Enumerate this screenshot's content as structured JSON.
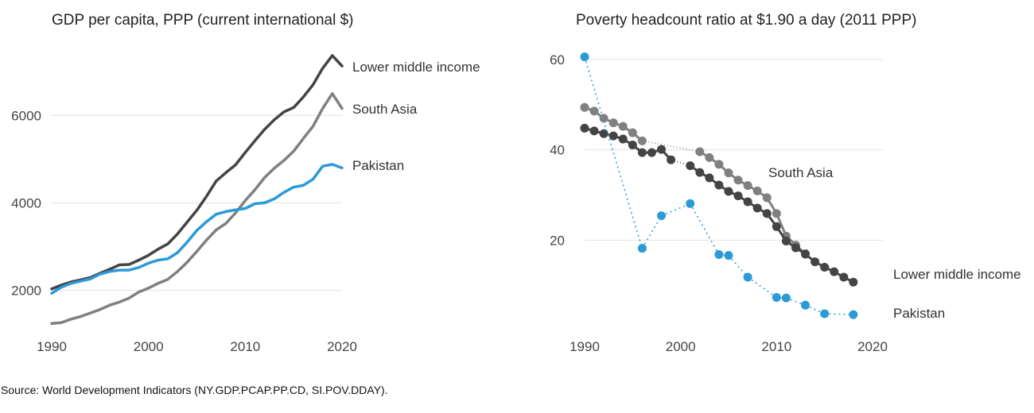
{
  "source": "Source: World Development Indicators (NY.GDP.PCAP.PP.CD, SI.POV.DDAY).",
  "chart_data": [
    {
      "type": "line",
      "title": "GDP per capita, PPP (current international $)",
      "xlim": [
        1990,
        2020
      ],
      "ylim": [
        1100,
        7550
      ],
      "xticks": [
        1990,
        2000,
        2010,
        2020
      ],
      "yticks": [
        2000,
        4000,
        6000
      ],
      "grid": true,
      "series": [
        {
          "name": "Lower middle income",
          "color": "#444444",
          "x": [
            1990,
            1991,
            1992,
            1993,
            1994,
            1995,
            1996,
            1997,
            1998,
            1999,
            2000,
            2001,
            2002,
            2003,
            2004,
            2005,
            2006,
            2007,
            2008,
            2009,
            2010,
            2011,
            2012,
            2013,
            2014,
            2015,
            2016,
            2017,
            2018,
            2019,
            2020
          ],
          "y": [
            2030,
            2120,
            2190,
            2240,
            2290,
            2390,
            2480,
            2580,
            2590,
            2690,
            2800,
            2940,
            3060,
            3290,
            3560,
            3830,
            4150,
            4500,
            4690,
            4870,
            5150,
            5420,
            5680,
            5900,
            6080,
            6180,
            6420,
            6700,
            7080,
            7370,
            7130
          ]
        },
        {
          "name": "South Asia",
          "color": "#808080",
          "x": [
            1990,
            1991,
            1992,
            1993,
            1994,
            1995,
            1996,
            1997,
            1998,
            1999,
            2000,
            2001,
            2002,
            2003,
            2004,
            2005,
            2006,
            2007,
            2008,
            2009,
            2010,
            2011,
            2012,
            2013,
            2014,
            2015,
            2016,
            2017,
            2018,
            2019,
            2020
          ],
          "y": [
            1240,
            1260,
            1340,
            1400,
            1480,
            1560,
            1660,
            1730,
            1820,
            1960,
            2050,
            2160,
            2250,
            2430,
            2640,
            2890,
            3150,
            3380,
            3530,
            3770,
            4050,
            4300,
            4580,
            4790,
            4970,
            5180,
            5470,
            5750,
            6160,
            6500,
            6160
          ]
        },
        {
          "name": "Pakistan",
          "color": "#2b9ad6",
          "x": [
            1990,
            1991,
            1992,
            1993,
            1994,
            1995,
            1996,
            1997,
            1998,
            1999,
            2000,
            2001,
            2002,
            2003,
            2004,
            2005,
            2006,
            2007,
            2008,
            2009,
            2010,
            2011,
            2012,
            2013,
            2014,
            2015,
            2016,
            2017,
            2018,
            2019,
            2020
          ],
          "y": [
            1930,
            2070,
            2160,
            2210,
            2260,
            2370,
            2430,
            2460,
            2460,
            2520,
            2620,
            2690,
            2720,
            2860,
            3100,
            3370,
            3570,
            3740,
            3800,
            3840,
            3870,
            3980,
            4000,
            4090,
            4240,
            4360,
            4400,
            4540,
            4840,
            4880,
            4800
          ]
        }
      ]
    },
    {
      "type": "line",
      "title": "Poverty headcount ratio at $1.90 a day (2011 PPP)",
      "xlim": [
        1990,
        2020
      ],
      "ylim": [
        0,
        63
      ],
      "xticks": [
        1990,
        2000,
        2010,
        2020
      ],
      "yticks": [
        20,
        40,
        60
      ],
      "grid": true,
      "series": [
        {
          "name": "South Asia",
          "color": "#808080",
          "x": [
            1990,
            1991,
            1992,
            1993,
            1994,
            1995,
            1996,
            2002,
            2003,
            2004,
            2005,
            2006,
            2007,
            2008,
            2009,
            2010,
            2011,
            2012,
            2013
          ],
          "y": [
            49.4,
            48.6,
            47.0,
            46.0,
            45.2,
            43.8,
            42.0,
            39.6,
            38.3,
            36.8,
            34.9,
            33.3,
            32.1,
            30.9,
            29.4,
            25.9,
            20.9,
            18.9,
            17.0
          ]
        },
        {
          "name": "Lower middle income",
          "color": "#444444",
          "x": [
            1990,
            1991,
            1992,
            1993,
            1994,
            1995,
            1996,
            1997,
            1998,
            1999,
            2001,
            2002,
            2003,
            2004,
            2005,
            2006,
            2007,
            2008,
            2009,
            2010,
            2011,
            2012,
            2013,
            2014,
            2015,
            2016,
            2017,
            2018
          ],
          "y": [
            44.8,
            44.2,
            43.6,
            43.1,
            42.4,
            41.1,
            39.4,
            39.4,
            40.1,
            37.8,
            36.5,
            35.0,
            33.8,
            32.2,
            30.8,
            29.8,
            28.5,
            27.1,
            25.9,
            23.0,
            19.8,
            18.3,
            16.9,
            15.2,
            14.0,
            13.0,
            11.8,
            10.7
          ]
        },
        {
          "name": "Pakistan",
          "color": "#2b9ad6",
          "x": [
            1990,
            1996,
            1998,
            2001,
            2004,
            2005,
            2007,
            2010,
            2011,
            2013,
            2015,
            2018
          ],
          "y": [
            60.6,
            18.2,
            25.4,
            28.1,
            16.8,
            16.6,
            11.8,
            7.3,
            7.2,
            5.6,
            3.7,
            3.5
          ]
        }
      ]
    }
  ]
}
